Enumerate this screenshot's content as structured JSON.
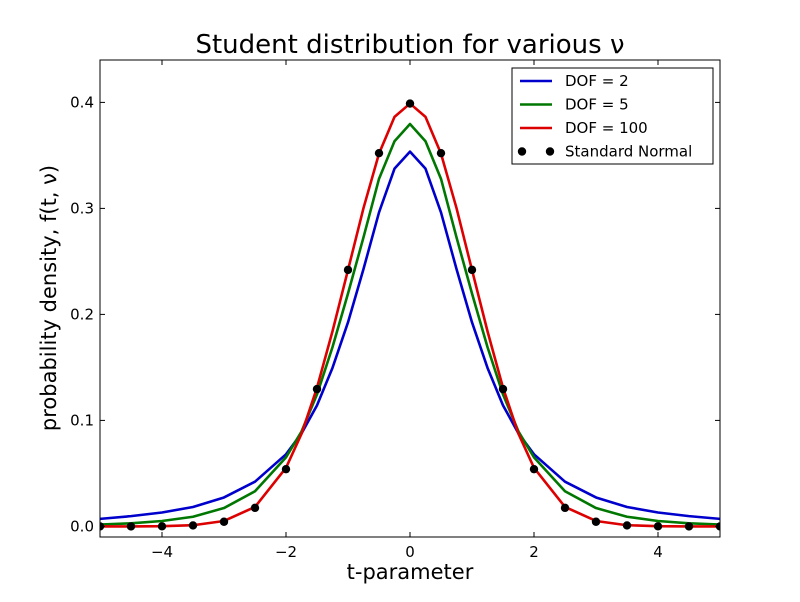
{
  "chart_data": {
    "type": "line",
    "title": "Student distribution for various ν",
    "xlabel": "t-parameter",
    "ylabel": "probability density, f(t, ν)",
    "xlim": [
      -5,
      5
    ],
    "ylim": [
      -0.01,
      0.44
    ],
    "xticks": [
      -4,
      -2,
      0,
      2,
      4
    ],
    "xtick_labels": [
      "−4",
      "−2",
      "0",
      "2",
      "4"
    ],
    "yticks": [
      0.0,
      0.1,
      0.2,
      0.3,
      0.4
    ],
    "ytick_labels": [
      "0.0",
      "0.1",
      "0.2",
      "0.3",
      "0.4"
    ],
    "grid": false,
    "legend_position": "top-right",
    "series": [
      {
        "name": "DOF = 2",
        "kind": "line",
        "color": "#0000cc",
        "x": [
          -5,
          -4.5,
          -4,
          -3.5,
          -3,
          -2.5,
          -2,
          -1.75,
          -1.5,
          -1.25,
          -1,
          -0.75,
          -0.5,
          -0.25,
          0,
          0.25,
          0.5,
          0.75,
          1,
          1.25,
          1.5,
          1.75,
          2,
          2.5,
          3,
          3.5,
          4,
          4.5,
          5
        ],
        "y": [
          0.0071,
          0.0097,
          0.0131,
          0.0183,
          0.0273,
          0.0422,
          0.068,
          0.0877,
          0.1142,
          0.1496,
          0.1925,
          0.2428,
          0.2962,
          0.3375,
          0.3536,
          0.3375,
          0.2962,
          0.2428,
          0.1925,
          0.1496,
          0.1142,
          0.0877,
          0.068,
          0.0422,
          0.0273,
          0.0183,
          0.0131,
          0.0097,
          0.0071
        ]
      },
      {
        "name": "DOF = 5",
        "kind": "line",
        "color": "#007700",
        "x": [
          -5,
          -4.5,
          -4,
          -3.5,
          -3,
          -2.5,
          -2,
          -1.75,
          -1.5,
          -1.25,
          -1,
          -0.75,
          -0.5,
          -0.25,
          0,
          0.25,
          0.5,
          0.75,
          1,
          1.25,
          1.5,
          1.75,
          2,
          2.5,
          3,
          3.5,
          4,
          4.5,
          5
        ],
        "y": [
          0.0018,
          0.0029,
          0.0051,
          0.0091,
          0.0173,
          0.0332,
          0.0651,
          0.0895,
          0.1245,
          0.1691,
          0.2197,
          0.2727,
          0.3279,
          0.3633,
          0.3796,
          0.3633,
          0.3279,
          0.2727,
          0.2197,
          0.1691,
          0.1245,
          0.0895,
          0.0651,
          0.0332,
          0.0173,
          0.0091,
          0.0051,
          0.0029,
          0.0018
        ]
      },
      {
        "name": "DOF = 100",
        "kind": "line",
        "color": "#dd0000",
        "x": [
          -5,
          -4.5,
          -4,
          -3.5,
          -3,
          -2.5,
          -2,
          -1.75,
          -1.5,
          -1.25,
          -1,
          -0.75,
          -0.5,
          -0.25,
          0,
          0.25,
          0.5,
          0.75,
          1,
          1.25,
          1.5,
          1.75,
          2,
          2.5,
          3,
          3.5,
          4,
          4.5,
          5
        ],
        "y": [
          0.0,
          0.0,
          0.0002,
          0.0011,
          0.0051,
          0.0184,
          0.0553,
          0.0873,
          0.1309,
          0.1841,
          0.2419,
          0.3003,
          0.3517,
          0.3863,
          0.3989,
          0.3863,
          0.3517,
          0.3003,
          0.2419,
          0.1841,
          0.1309,
          0.0873,
          0.0553,
          0.0184,
          0.0051,
          0.0011,
          0.0002,
          0.0,
          0.0
        ]
      },
      {
        "name": "Standard Normal",
        "kind": "points",
        "color": "#000000",
        "x": [
          -5,
          -4.5,
          -4,
          -3.5,
          -3,
          -2.5,
          -2,
          -1.5,
          -1,
          -0.5,
          0,
          0.5,
          1,
          1.5,
          2,
          2.5,
          3,
          3.5,
          4,
          4.5,
          5
        ],
        "y": [
          0.0,
          0.0,
          0.0001,
          0.0009,
          0.0044,
          0.0175,
          0.054,
          0.1295,
          0.242,
          0.3521,
          0.3989,
          0.3521,
          0.242,
          0.1295,
          0.054,
          0.0175,
          0.0044,
          0.0009,
          0.0001,
          0.0,
          0.0
        ]
      }
    ]
  }
}
